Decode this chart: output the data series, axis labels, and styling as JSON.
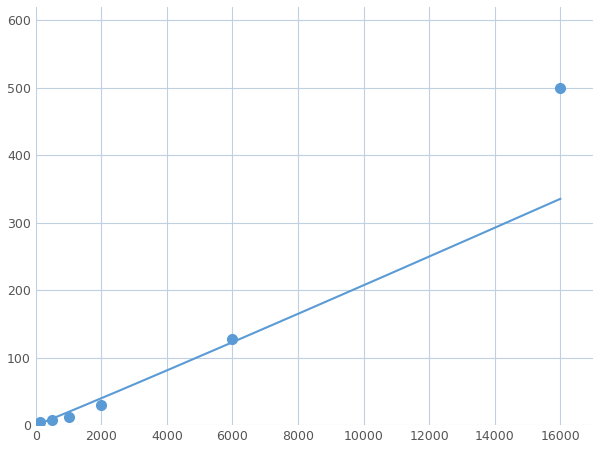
{
  "x": [
    125,
    500,
    1000,
    2000,
    6000,
    16000
  ],
  "y": [
    4,
    8,
    12,
    30,
    128,
    500
  ],
  "line_color": "#5b9bd5",
  "marker_color": "#5b9bd5",
  "marker_size": 7,
  "xlim": [
    0,
    17000
  ],
  "ylim": [
    0,
    620
  ],
  "xticks": [
    0,
    2000,
    4000,
    6000,
    8000,
    10000,
    12000,
    14000,
    16000
  ],
  "yticks": [
    0,
    100,
    200,
    300,
    400,
    500,
    600
  ],
  "grid_color": "#c0d0e0",
  "background_color": "#ffffff",
  "linewidth": 1.5,
  "figsize": [
    6.0,
    4.5
  ],
  "dpi": 100
}
